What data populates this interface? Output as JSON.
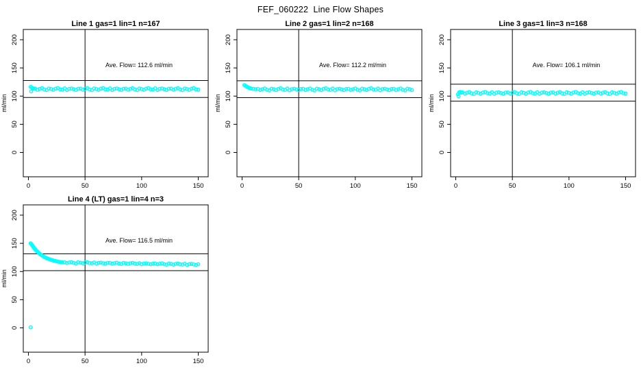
{
  "page_title": "FEF_060222  Line Flow Shapes",
  "axes": {
    "xlabel": "",
    "ylabel": "ml/min",
    "xticks": [
      0,
      50,
      100,
      150
    ],
    "yticks": [
      0,
      50,
      100,
      150,
      200
    ],
    "xlim": [
      -4.5,
      158.8
    ],
    "ylim": [
      -43,
      218
    ],
    "vline_x": 50,
    "grid": "off",
    "point_color": "#00FFFF",
    "line_color": "#000000",
    "background": "#FFFFFF"
  },
  "chart_data": [
    {
      "type": "scatter",
      "title": "Line 1 gas=1 lin=1 n=167",
      "n": 167,
      "ave_flow": 112.6,
      "annotation": "Ave. Flow=  112.6  ml/min",
      "ref_lines": [
        127.6,
        97.6
      ],
      "points": [
        2,
        116.3,
        2.4,
        108.2,
        3,
        114.8,
        4,
        113.9,
        5,
        112.9,
        6,
        113.3,
        8,
        111.3,
        10,
        112.8,
        12,
        114.0,
        14,
        111.7,
        16,
        110.6,
        18,
        113.6,
        20,
        112.6,
        22,
        111.1,
        24,
        113.2,
        26,
        114.3,
        28,
        112.0,
        30,
        111.5,
        32,
        113.8,
        34,
        110.8,
        36,
        112.9,
        38,
        113.5,
        40,
        112.2,
        42,
        111.0,
        44,
        113.1,
        46,
        113.3,
        48,
        111.3,
        50,
        112.8,
        52,
        114.0,
        54,
        111.7,
        56,
        110.6,
        58,
        113.6,
        60,
        112.6,
        62,
        111.1,
        64,
        113.2,
        66,
        114.3,
        68,
        112.0,
        70,
        111.5,
        72,
        113.8,
        74,
        110.8,
        76,
        112.9,
        78,
        113.5,
        80,
        112.2,
        82,
        111.0,
        84,
        113.1,
        86,
        113.3,
        88,
        111.3,
        90,
        112.8,
        92,
        114.0,
        94,
        111.7,
        96,
        110.6,
        98,
        113.6,
        100,
        112.6,
        102,
        111.1,
        104,
        113.2,
        106,
        114.3,
        108,
        112.0,
        110,
        111.5,
        112,
        113.8,
        114,
        110.8,
        116,
        112.9,
        118,
        113.5,
        120,
        112.2,
        122,
        111.0,
        124,
        113.1,
        126,
        113.3,
        128,
        111.3,
        130,
        112.8,
        132,
        114.0,
        134,
        111.7,
        136,
        110.6,
        138,
        113.6,
        140,
        112.6,
        142,
        111.1,
        144,
        113.2,
        146,
        114.3,
        148,
        112.0,
        150,
        111.5
      ]
    },
    {
      "type": "scatter",
      "title": "Line 2 gas=1 lin=2 n=168",
      "n": 168,
      "ave_flow": 112.2,
      "annotation": "Ave. Flow=  112.2  ml/min",
      "ref_lines": [
        127.2,
        97.2
      ],
      "points": [
        2,
        119.6,
        3,
        118.4,
        4,
        117.0,
        5,
        115.8,
        6,
        114.8,
        7,
        114.0,
        8,
        113.4,
        10,
        112.8,
        12,
        112.4,
        14,
        112.9,
        16,
        110.9,
        18,
        112.4,
        20,
        113.6,
        22,
        111.3,
        24,
        110.2,
        26,
        113.2,
        28,
        112.2,
        30,
        110.7,
        32,
        112.8,
        34,
        113.9,
        36,
        111.6,
        38,
        111.1,
        40,
        113.4,
        42,
        110.4,
        44,
        112.5,
        46,
        113.1,
        48,
        111.8,
        50,
        110.6,
        52,
        112.7,
        54,
        112.9,
        56,
        110.9,
        58,
        112.4,
        60,
        113.6,
        62,
        111.3,
        64,
        110.2,
        66,
        113.2,
        68,
        112.2,
        70,
        110.7,
        72,
        112.8,
        74,
        113.9,
        76,
        111.6,
        78,
        111.1,
        80,
        113.4,
        82,
        110.4,
        84,
        112.5,
        86,
        113.1,
        88,
        111.8,
        90,
        110.6,
        92,
        112.7,
        94,
        112.9,
        96,
        110.9,
        98,
        112.4,
        100,
        113.6,
        102,
        111.3,
        104,
        110.2,
        106,
        113.2,
        108,
        112.2,
        110,
        110.7,
        112,
        112.8,
        114,
        113.9,
        116,
        111.6,
        118,
        111.1,
        120,
        113.4,
        122,
        110.4,
        124,
        112.5,
        126,
        113.1,
        128,
        111.8,
        130,
        110.6,
        132,
        112.7,
        134,
        112.9,
        136,
        110.9,
        138,
        112.4,
        140,
        113.6,
        142,
        111.3,
        144,
        110.2,
        146,
        113.2,
        148,
        112.2,
        150,
        110.7
      ]
    },
    {
      "type": "scatter",
      "title": "Line 3 gas=1 lin=3 n=168",
      "n": 168,
      "ave_flow": 106.1,
      "annotation": "Ave. Flow=  106.1  ml/min",
      "ref_lines": [
        121.1,
        91.1
      ],
      "points": [
        2,
        103.2,
        2.5,
        99.8,
        3,
        106.8,
        4,
        107.4,
        5,
        106.2,
        6,
        106.5,
        8,
        104.5,
        10,
        106.0,
        12,
        107.2,
        14,
        104.9,
        16,
        103.8,
        18,
        106.8,
        20,
        105.8,
        22,
        104.3,
        24,
        106.4,
        26,
        107.5,
        28,
        105.2,
        30,
        104.7,
        32,
        107.0,
        34,
        104.0,
        36,
        106.1,
        38,
        106.7,
        40,
        105.4,
        42,
        104.2,
        44,
        106.3,
        46,
        106.5,
        48,
        104.5,
        50,
        106.0,
        52,
        107.2,
        54,
        104.9,
        56,
        103.8,
        58,
        106.8,
        60,
        105.8,
        62,
        104.3,
        64,
        106.4,
        66,
        107.5,
        68,
        105.2,
        70,
        104.7,
        72,
        107.0,
        74,
        104.0,
        76,
        106.1,
        78,
        106.7,
        80,
        105.4,
        82,
        104.2,
        84,
        106.3,
        86,
        106.5,
        88,
        104.5,
        90,
        106.0,
        92,
        107.2,
        94,
        104.9,
        96,
        103.8,
        98,
        106.8,
        100,
        105.8,
        102,
        104.3,
        104,
        106.4,
        106,
        107.5,
        108,
        105.2,
        110,
        104.7,
        112,
        107.0,
        114,
        104.0,
        116,
        106.1,
        118,
        106.7,
        120,
        105.4,
        122,
        104.2,
        124,
        106.3,
        126,
        106.5,
        128,
        104.5,
        130,
        106.0,
        132,
        107.2,
        134,
        104.9,
        136,
        103.8,
        138,
        106.8,
        140,
        105.8,
        142,
        104.3,
        144,
        106.4,
        146,
        107.5,
        148,
        105.2,
        150,
        104.7
      ]
    },
    {
      "type": "scatter",
      "title": "Line 4 (LT) gas=1 lin=4 n=3",
      "n": 3,
      "ave_flow": 116.5,
      "annotation": "Ave. Flow=  116.5  ml/min",
      "ref_lines": [
        131.5,
        101.5
      ],
      "points": [
        2,
        1.0,
        2,
        150.0,
        2.5,
        149.0,
        3,
        147.5,
        3.5,
        146.0,
        4,
        144.6,
        4.5,
        143.2,
        5,
        141.9,
        5.5,
        140.6,
        6,
        139.4,
        6.5,
        138.2,
        7,
        137.1,
        7.5,
        136.1,
        8,
        135.1,
        8.5,
        134.1,
        9,
        133.2,
        9.5,
        132.3,
        10,
        131.5,
        11,
        129.9,
        12,
        128.5,
        13,
        127.2,
        14,
        126.0,
        15,
        124.9,
        16,
        123.9,
        17,
        123.0,
        18,
        122.2,
        19,
        121.4,
        20,
        120.7,
        21,
        120.1,
        22,
        119.5,
        23,
        119.0,
        24,
        118.5,
        25,
        118.0,
        26,
        117.6,
        27,
        117.2,
        28,
        116.8,
        29,
        116.5,
        30,
        116.2,
        32,
        116.4,
        34,
        115.2,
        36,
        116.0,
        38,
        116.7,
        40,
        115.3,
        42,
        114.5,
        44,
        116.3,
        46,
        115.6,
        48,
        114.7,
        50,
        115.9,
        52,
        116.5,
        54,
        115.0,
        56,
        114.7,
        58,
        116.0,
        60,
        114.2,
        62,
        115.4,
        64,
        115.7,
        66,
        114.8,
        68,
        114.1,
        70,
        115.3,
        72,
        115.3,
        74,
        114.1,
        76,
        114.9,
        78,
        115.6,
        80,
        114.1,
        82,
        113.4,
        84,
        115.2,
        86,
        114.5,
        88,
        113.6,
        90,
        114.8,
        92,
        115.4,
        94,
        113.9,
        96,
        113.6,
        98,
        114.9,
        100,
        113.0,
        102,
        114.2,
        104,
        114.5,
        106,
        113.7,
        108,
        112.9,
        110,
        114.1,
        112,
        114.2,
        114,
        112.9,
        116,
        113.8,
        118,
        114.5,
        120,
        113.0,
        122,
        112.3,
        124,
        114.0,
        126,
        113.4,
        128,
        112.4,
        130,
        113.6,
        132,
        114.2,
        134,
        112.8,
        136,
        112.5,
        138,
        113.8,
        140,
        111.9,
        142,
        113.1,
        144,
        113.4,
        146,
        112.6,
        148,
        111.8,
        150,
        113.0
      ]
    }
  ]
}
